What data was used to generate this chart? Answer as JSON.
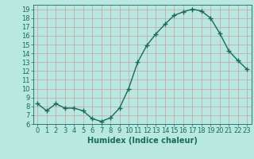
{
  "x": [
    0,
    1,
    2,
    3,
    4,
    5,
    6,
    7,
    8,
    9,
    10,
    11,
    12,
    13,
    14,
    15,
    16,
    17,
    18,
    19,
    20,
    21,
    22,
    23
  ],
  "y": [
    8.3,
    7.5,
    8.3,
    7.8,
    7.8,
    7.5,
    6.6,
    6.3,
    6.7,
    7.8,
    10.0,
    13.0,
    14.9,
    16.2,
    17.3,
    18.3,
    18.7,
    19.0,
    18.8,
    18.0,
    16.3,
    14.3,
    13.2,
    12.2
  ],
  "line_color": "#1a6b5a",
  "marker": "+",
  "bg_color": "#b8e8e0",
  "plot_bg_color": "#b8e8e0",
  "grid_color": "#c8a0a0",
  "axis_color": "#1a6b5a",
  "xlabel": "Humidex (Indice chaleur)",
  "xlim": [
    -0.5,
    23.5
  ],
  "ylim": [
    6,
    19.5
  ],
  "yticks": [
    6,
    7,
    8,
    9,
    10,
    11,
    12,
    13,
    14,
    15,
    16,
    17,
    18,
    19
  ],
  "xticks": [
    0,
    1,
    2,
    3,
    4,
    5,
    6,
    7,
    8,
    9,
    10,
    11,
    12,
    13,
    14,
    15,
    16,
    17,
    18,
    19,
    20,
    21,
    22,
    23
  ],
  "xlabel_fontsize": 7,
  "tick_fontsize": 6,
  "linewidth": 1.0,
  "markersize": 4,
  "markeredgewidth": 1.0
}
